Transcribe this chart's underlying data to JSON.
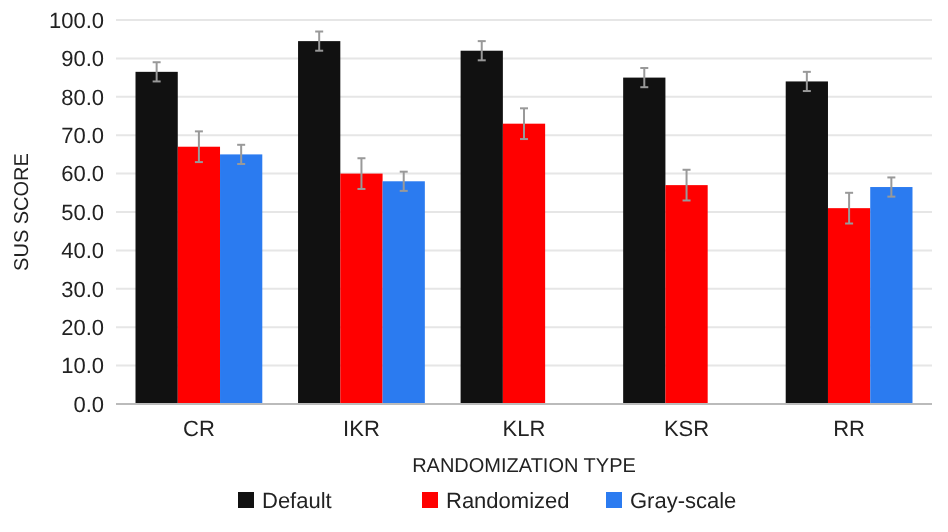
{
  "chart_data": {
    "type": "bar",
    "xlabel": "RANDOMIZATION TYPE",
    "ylabel": "SUS SCORE",
    "categories": [
      "CR",
      "IKR",
      "KLR",
      "KSR",
      "RR"
    ],
    "series": [
      {
        "name": "Default",
        "color": "#111111",
        "values": [
          86.5,
          94.5,
          92,
          85,
          84
        ],
        "errors": [
          2.5,
          2.5,
          2.5,
          2.5,
          2.5
        ]
      },
      {
        "name": "Randomized",
        "color": "#ff0000",
        "values": [
          67,
          60,
          73,
          57,
          51
        ],
        "errors": [
          4,
          4,
          4,
          4,
          4
        ]
      },
      {
        "name": "Gray-scale",
        "color": "#2b7bf0",
        "values": [
          65,
          58,
          null,
          null,
          56.5
        ],
        "errors": [
          2.5,
          2.5,
          null,
          null,
          2.5
        ]
      }
    ],
    "ylim": [
      0,
      100
    ],
    "yticks": [
      {
        "value": 0,
        "label": "0.0"
      },
      {
        "value": 10,
        "label": "10.0"
      },
      {
        "value": 20,
        "label": "20.0"
      },
      {
        "value": 30,
        "label": "30.0"
      },
      {
        "value": 40,
        "label": "40.0"
      },
      {
        "value": 50,
        "label": "50.0"
      },
      {
        "value": 60,
        "label": "60.0"
      },
      {
        "value": 70,
        "label": "70.0"
      },
      {
        "value": 80,
        "label": "80.0"
      },
      {
        "value": 90,
        "label": "90.0"
      },
      {
        "value": 100,
        "label": "100.0"
      }
    ],
    "grid": "y",
    "legend": "bottom"
  }
}
